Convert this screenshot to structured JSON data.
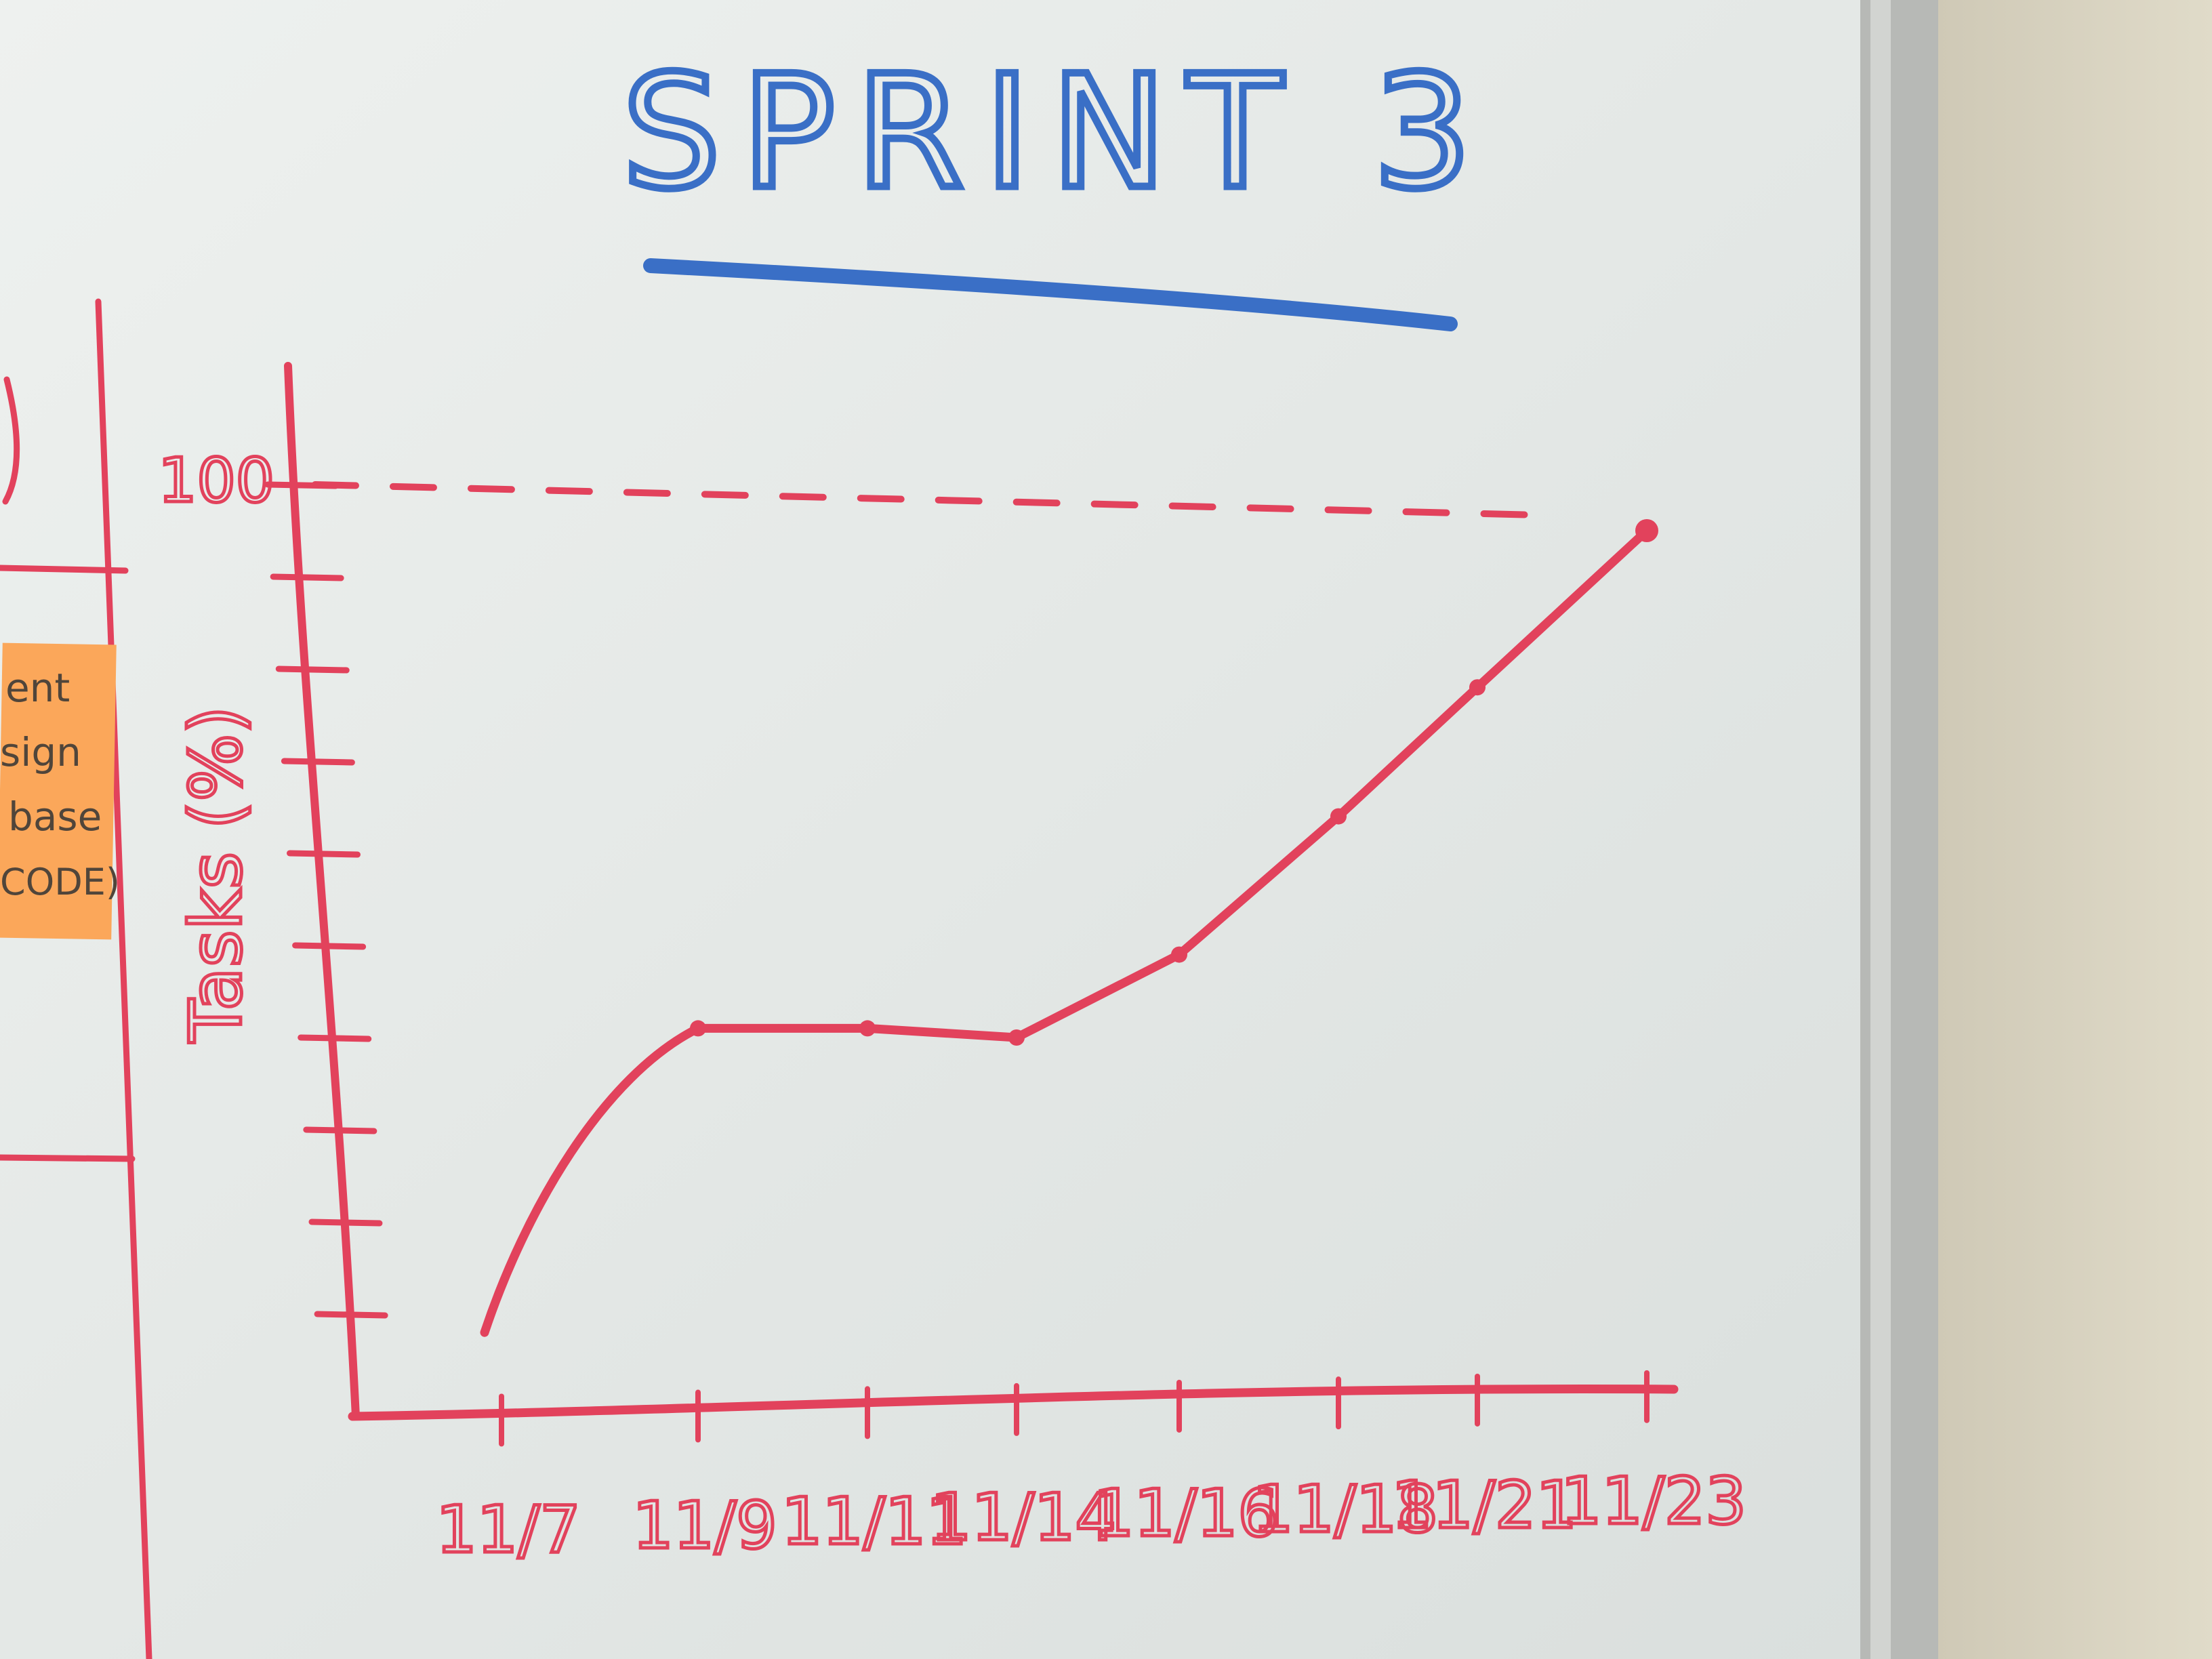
{
  "whiteboard": {
    "title": "SPRINT 3",
    "colors": {
      "title_marker": "#3a6fc6",
      "chart_marker": "#e2425c",
      "board": "#e8ecea",
      "sticky_note": "#fba75a",
      "frame": "#b9bbb8",
      "wall": "#d8d3c0"
    }
  },
  "sticky_note": {
    "lines": [
      "ent",
      "sign",
      "base",
      "CODE)"
    ]
  },
  "chart_data": {
    "type": "line",
    "title": "SPRINT 3",
    "ylabel": "Tasks (%)",
    "xlabel": "",
    "ylim": [
      0,
      100
    ],
    "y_tick_labels": [
      "100"
    ],
    "y_minor_ticks": 10,
    "categories": [
      "11/7",
      "11/9",
      "11/11",
      "11/14",
      "11/16",
      "11/18",
      "11/21",
      "11/23"
    ],
    "series": [
      {
        "values": [
          8,
          41,
          41,
          40,
          49,
          64,
          78,
          95
        ]
      }
    ],
    "reference_line": {
      "y": 100,
      "style": "dashed"
    },
    "grid": false
  }
}
